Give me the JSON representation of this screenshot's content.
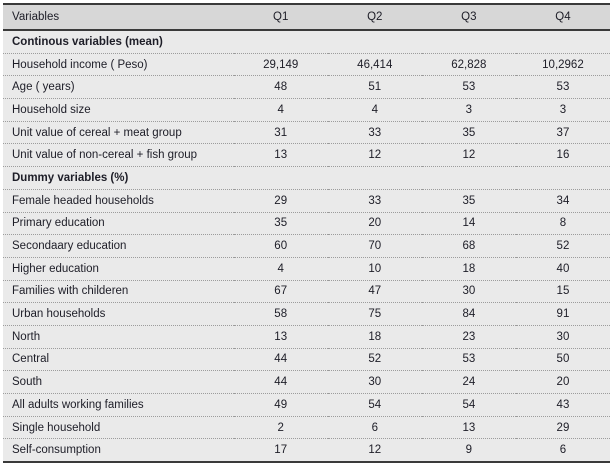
{
  "page": {
    "background": "#ffffff"
  },
  "colors": {
    "header_bg": "#d7d7d7",
    "row_bg": "#eaeaea",
    "text": "#1d1d27",
    "rule": "#3a3a3a",
    "dotted": "#9c9c9c"
  },
  "chart_data": {
    "type": "table",
    "columns": [
      "Variables",
      "Q1",
      "Q2",
      "Q3",
      "Q4"
    ],
    "sections": [
      {
        "title": "Continous variables (mean)",
        "rows": [
          {
            "label": "Household income ( Peso)",
            "values": [
              "29,149",
              "46,414",
              "62,828",
              "10,2962"
            ]
          },
          {
            "label": "Age ( years)",
            "values": [
              "48",
              "51",
              "53",
              "53"
            ]
          },
          {
            "label": "Household size",
            "values": [
              "4",
              "4",
              "3",
              "3"
            ]
          },
          {
            "label": "Unit value of cereal + meat group",
            "values": [
              "31",
              "33",
              "35",
              "37"
            ]
          },
          {
            "label": "Unit value of non-cereal + fish group",
            "values": [
              "13",
              "12",
              "12",
              "16"
            ]
          }
        ]
      },
      {
        "title": "Dummy variables (%)",
        "rows": [
          {
            "label": "Female headed households",
            "values": [
              "29",
              "33",
              "35",
              "34"
            ]
          },
          {
            "label": "Primary education",
            "values": [
              "35",
              "20",
              "14",
              "8"
            ]
          },
          {
            "label": "Secondaary education",
            "values": [
              "60",
              "70",
              "68",
              "52"
            ]
          },
          {
            "label": "Higher education",
            "values": [
              "4",
              "10",
              "18",
              "40"
            ]
          },
          {
            "label": "Families with childeren",
            "values": [
              "67",
              "47",
              "30",
              "15"
            ]
          },
          {
            "label": "Urban households",
            "values": [
              "58",
              "75",
              "84",
              "91"
            ]
          },
          {
            "label": "North",
            "values": [
              "13",
              "18",
              "23",
              "30"
            ]
          },
          {
            "label": "Central",
            "values": [
              "44",
              "52",
              "53",
              "50"
            ]
          },
          {
            "label": "South",
            "values": [
              "44",
              "30",
              "24",
              "20"
            ]
          },
          {
            "label": "All adults working families",
            "values": [
              "49",
              "54",
              "54",
              "43"
            ]
          },
          {
            "label": "Single household",
            "values": [
              "2",
              "6",
              "13",
              "29"
            ]
          },
          {
            "label": "Self-consumption",
            "values": [
              "17",
              "12",
              "9",
              "6"
            ]
          }
        ]
      }
    ]
  }
}
